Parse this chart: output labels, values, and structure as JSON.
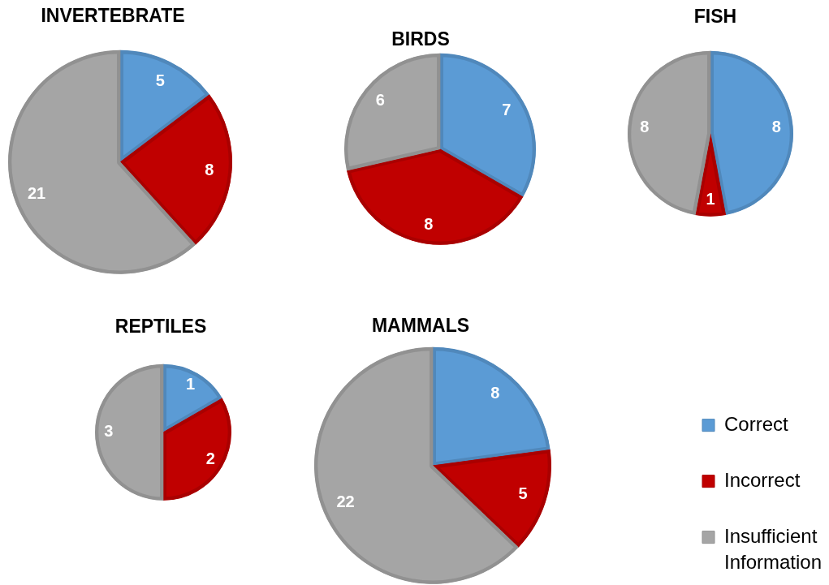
{
  "chart_data": [
    {
      "type": "pie",
      "title": "INVERTEBRATE",
      "values": [
        5,
        8,
        21
      ],
      "colors": [
        "#5b9bd5",
        "#c00000",
        "#a5a5a5"
      ],
      "data_labels": true
    },
    {
      "type": "pie",
      "title": "BIRDS",
      "values": [
        7,
        8,
        6
      ],
      "colors": [
        "#5b9bd5",
        "#c00000",
        "#a5a5a5"
      ],
      "data_labels": true
    },
    {
      "type": "pie",
      "title": "FISH",
      "values": [
        8,
        1,
        8
      ],
      "colors": [
        "#5b9bd5",
        "#c00000",
        "#a5a5a5"
      ],
      "data_labels": true
    },
    {
      "type": "pie",
      "title": "REPTILES",
      "values": [
        1,
        2,
        3
      ],
      "colors": [
        "#5b9bd5",
        "#c00000",
        "#a5a5a5"
      ],
      "data_labels": true
    },
    {
      "type": "pie",
      "title": "MAMMALS",
      "categories": [
        "Correct",
        "Incorrect",
        "Insufficient Information"
      ],
      "values": [
        8,
        5,
        22
      ],
      "colors": [
        "#5b9bd5",
        "#c00000",
        "#a5a5a5"
      ],
      "data_labels": true,
      "legend": "bottom right"
    }
  ]
}
